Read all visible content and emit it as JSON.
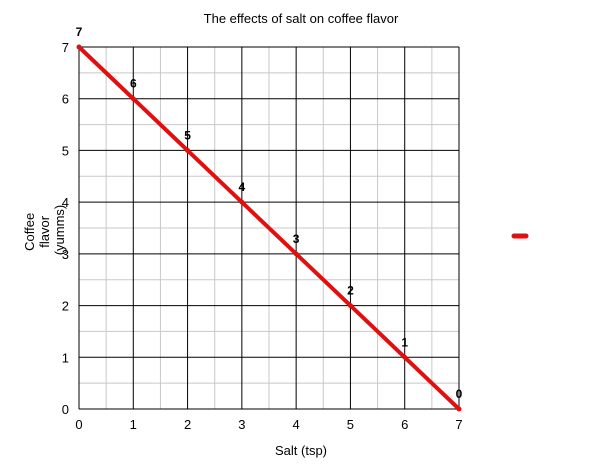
{
  "chart_data": {
    "type": "line",
    "title": "The effects of salt on coffee flavor",
    "xlabel": "Salt (tsp)",
    "ylabel_lines": [
      "Coffee",
      "flavor",
      "(yumms)"
    ],
    "xlim": [
      0,
      7
    ],
    "ylim": [
      0,
      7
    ],
    "x_ticks": [
      0,
      1,
      2,
      3,
      4,
      5,
      6,
      7
    ],
    "y_ticks": [
      0,
      1,
      2,
      3,
      4,
      5,
      6,
      7
    ],
    "minor_grid_step": 0.5,
    "grid": true,
    "legend": {
      "placement": "right",
      "show_name": false
    },
    "series": [
      {
        "color": "#e01010",
        "x": [
          0,
          1,
          2,
          3,
          4,
          5,
          6,
          7
        ],
        "y": [
          7,
          6,
          5,
          4,
          3,
          2,
          1,
          0
        ],
        "data_labels": [
          "7",
          "6",
          "5",
          "4",
          "3",
          "2",
          "1",
          "0"
        ]
      }
    ]
  }
}
